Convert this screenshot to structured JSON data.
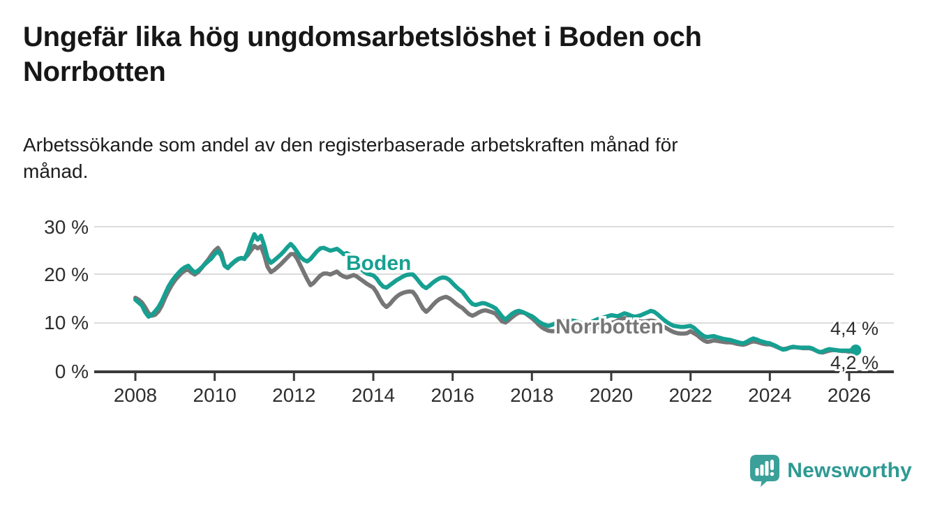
{
  "header": {
    "title_line1": "Ungefär lika hög ungdomsarbetslöshet i Boden och",
    "title_line2": "Norrbotten",
    "subtitle_line1": "Arbetssökande som andel av den registerbaserade arbetskraften månad för",
    "subtitle_line2": "månad."
  },
  "chart_data": {
    "type": "line",
    "title": "Ungefär lika hög ungdomsarbetslöshet i Boden och Norrbotten",
    "subtitle": "Arbetssökande som andel av den registerbaserade arbetskraften månad för månad.",
    "x_unit": "year-month",
    "start_year": 2008,
    "points_per_year": 12,
    "x_tick_labels": [
      "2008",
      "2010",
      "2012",
      "2014",
      "2016",
      "2018",
      "2020",
      "2022",
      "2024",
      "2026"
    ],
    "y_tick_labels": [
      "0 %",
      "10 %",
      "20 %",
      "30 %"
    ],
    "y_ticks": [
      0,
      10,
      20,
      30
    ],
    "ylim": [
      0,
      32
    ],
    "grid": true,
    "legend_position": "inline-labels",
    "series": [
      {
        "name": "Boden",
        "color": "#16a092",
        "end_label": "4,4 %",
        "values": [
          14.8,
          14.2,
          13.6,
          12.2,
          11.3,
          11.7,
          12.4,
          13.3,
          14.5,
          16.0,
          17.5,
          18.6,
          19.5,
          20.3,
          21.0,
          21.5,
          21.8,
          21.0,
          20.4,
          20.8,
          21.4,
          22.1,
          22.7,
          23.3,
          24.2,
          24.8,
          23.9,
          21.8,
          21.3,
          22.1,
          22.7,
          23.2,
          23.4,
          23.2,
          24.6,
          26.6,
          28.3,
          27.2,
          28.0,
          26.0,
          23.4,
          22.4,
          22.9,
          23.5,
          24.1,
          24.8,
          25.6,
          26.3,
          25.6,
          24.6,
          23.6,
          23.0,
          22.7,
          23.2,
          24.0,
          24.8,
          25.4,
          25.5,
          25.2,
          24.9,
          25.1,
          25.3,
          24.8,
          24.2,
          24.4,
          24.0,
          23.3,
          22.4,
          21.4,
          20.7,
          20.2,
          20.0,
          19.8,
          19.2,
          18.2,
          17.5,
          17.3,
          17.8,
          18.3,
          18.8,
          19.2,
          19.6,
          19.9,
          20.0,
          20.0,
          19.3,
          18.4,
          17.6,
          17.2,
          17.7,
          18.3,
          18.8,
          19.2,
          19.4,
          19.3,
          18.9,
          18.2,
          17.5,
          16.9,
          16.4,
          15.5,
          14.6,
          13.9,
          13.7,
          13.9,
          14.1,
          14.0,
          13.7,
          13.4,
          13.0,
          12.2,
          11.3,
          10.7,
          11.3,
          11.9,
          12.3,
          12.5,
          12.3,
          12.0,
          11.7,
          11.4,
          10.9,
          10.3,
          9.9,
          9.6,
          9.4,
          9.6,
          9.9,
          10.1,
          10.3,
          10.4,
          10.5,
          10.5,
          10.4,
          10.2,
          10.0,
          9.9,
          10.0,
          10.2,
          10.5,
          10.8,
          11.0,
          11.2,
          11.4,
          11.6,
          11.5,
          11.4,
          11.7,
          12.0,
          11.8,
          11.5,
          11.3,
          11.4,
          11.6,
          11.9,
          12.2,
          12.5,
          12.3,
          11.8,
          11.2,
          10.6,
          10.1,
          9.7,
          9.4,
          9.3,
          9.2,
          9.2,
          9.3,
          9.4,
          9.0,
          8.4,
          7.8,
          7.3,
          7.1,
          7.2,
          7.3,
          7.1,
          6.9,
          6.7,
          6.6,
          6.5,
          6.3,
          6.1,
          5.9,
          5.8,
          6.1,
          6.5,
          6.8,
          6.6,
          6.3,
          6.1,
          5.9,
          5.8,
          5.5,
          5.2,
          4.8,
          4.5,
          4.6,
          4.9,
          5.1,
          5.0,
          4.9,
          4.9,
          4.9,
          4.9,
          4.7,
          4.3,
          4.0,
          4.1,
          4.4,
          4.6,
          4.5,
          4.4,
          4.3,
          4.3,
          4.3,
          4.3,
          4.4,
          4.4
        ]
      },
      {
        "name": "Norrbotten",
        "color": "#767676",
        "end_label": "4,2 %",
        "values": [
          15.2,
          14.8,
          14.2,
          13.2,
          12.0,
          11.5,
          11.7,
          12.4,
          13.6,
          15.2,
          16.6,
          17.8,
          18.8,
          19.6,
          20.3,
          20.8,
          21.0,
          20.4,
          20.0,
          20.5,
          21.3,
          22.2,
          23.0,
          24.0,
          24.9,
          25.5,
          24.4,
          21.9,
          21.4,
          22.0,
          22.6,
          23.1,
          23.4,
          23.3,
          24.0,
          25.0,
          25.9,
          25.4,
          25.8,
          24.0,
          21.6,
          20.5,
          20.9,
          21.5,
          22.1,
          22.8,
          23.5,
          24.2,
          24.2,
          23.2,
          21.8,
          20.4,
          19.0,
          17.8,
          18.3,
          19.1,
          19.8,
          20.2,
          20.2,
          20.0,
          20.3,
          20.6,
          20.0,
          19.6,
          19.4,
          19.6,
          19.9,
          19.6,
          19.1,
          18.6,
          18.1,
          17.7,
          17.3,
          16.3,
          15.0,
          13.9,
          13.3,
          13.9,
          14.7,
          15.4,
          15.9,
          16.2,
          16.4,
          16.5,
          16.4,
          15.5,
          14.2,
          13.0,
          12.3,
          12.9,
          13.7,
          14.4,
          14.9,
          15.2,
          15.4,
          15.1,
          14.6,
          14.0,
          13.5,
          13.1,
          12.4,
          11.8,
          11.5,
          11.8,
          12.2,
          12.5,
          12.6,
          12.4,
          12.2,
          11.9,
          11.1,
          10.3,
          10.1,
          10.6,
          11.2,
          11.7,
          12.1,
          12.2,
          12.0,
          11.5,
          11.0,
          10.4,
          9.7,
          9.1,
          8.7,
          8.4,
          8.3,
          8.3,
          8.5,
          8.7,
          8.9,
          9.0,
          9.1,
          9.0,
          8.8,
          8.6,
          8.5,
          8.6,
          8.8,
          9.0,
          9.2,
          9.4,
          9.6,
          9.8,
          10.0,
          10.2,
          10.5,
          10.8,
          11.0,
          10.9,
          10.7,
          10.5,
          10.4,
          10.3,
          10.3,
          10.4,
          10.5,
          10.4,
          10.1,
          9.7,
          9.2,
          8.8,
          8.4,
          8.1,
          7.9,
          7.8,
          7.8,
          7.9,
          8.3,
          7.9,
          7.5,
          6.9,
          6.4,
          6.1,
          6.2,
          6.4,
          6.3,
          6.2,
          6.1,
          6.0,
          6.0,
          5.9,
          5.7,
          5.6,
          5.5,
          5.7,
          6.0,
          6.2,
          6.1,
          5.9,
          5.7,
          5.6,
          5.6,
          5.4,
          5.1,
          4.8,
          4.6,
          4.7,
          4.9,
          5.0,
          5.0,
          4.9,
          4.8,
          4.8,
          4.8,
          4.6,
          4.3,
          4.0,
          3.9,
          4.1,
          4.3,
          4.4,
          4.4,
          4.3,
          4.2,
          4.2,
          4.1,
          4.2,
          4.2
        ]
      }
    ]
  },
  "annotations": {
    "boden_label": "Boden",
    "norrbotten_label": "Norrbotten",
    "end_value_boden": "4,4 %",
    "end_value_norrbotten": "4,2 %"
  },
  "logo": {
    "text": "Newsworthy",
    "color": "#2d9a93",
    "icon_color": "#3aa099",
    "icon": "newsworthy-chart-bubble-icon"
  }
}
